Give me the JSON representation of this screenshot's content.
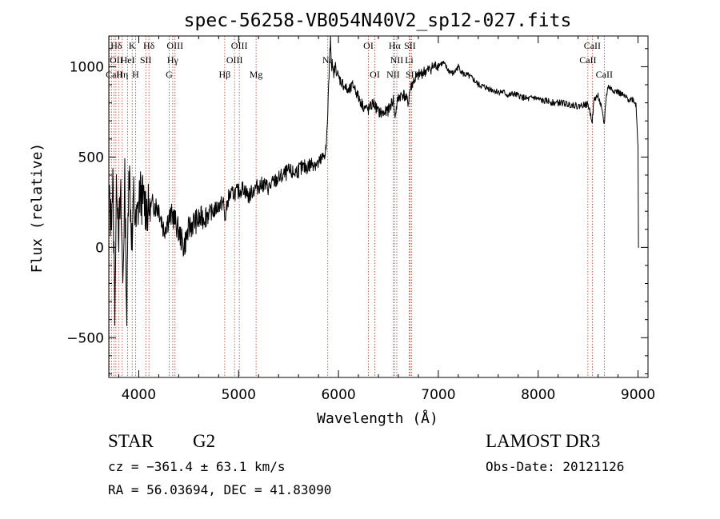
{
  "chart_data": {
    "type": "line",
    "title": "spec-56258-VB054N40V2_sp12-027.fits",
    "xlabel": "Wavelength (Å)",
    "ylabel": "Flux (relative)",
    "xlim": [
      3700,
      9100
    ],
    "ylim": [
      -720,
      1170
    ],
    "x_ticks": [
      4000,
      5000,
      6000,
      7000,
      8000,
      9000
    ],
    "x_tick_labels": [
      "4000",
      "5000",
      "6000",
      "7000",
      "8000",
      "9000"
    ],
    "y_ticks": [
      -500,
      0,
      500,
      1000
    ],
    "y_tick_labels": [
      "−500",
      "0",
      "500",
      "1000"
    ],
    "grid": false,
    "series": [
      {
        "name": "spectrum",
        "x": [
          3700,
          3720,
          3740,
          3760,
          3780,
          3800,
          3820,
          3840,
          3860,
          3880,
          3900,
          3920,
          3935,
          3950,
          3970,
          3990,
          4010,
          4050,
          4100,
          4150,
          4200,
          4250,
          4300,
          4340,
          4400,
          4450,
          4500,
          4550,
          4600,
          4650,
          4700,
          4750,
          4800,
          4850,
          4861,
          4900,
          4950,
          5000,
          5050,
          5100,
          5150,
          5200,
          5250,
          5300,
          5350,
          5400,
          5450,
          5500,
          5550,
          5600,
          5650,
          5700,
          5750,
          5800,
          5850,
          5880,
          5893,
          5910,
          5920,
          5930,
          5950,
          5970,
          6000,
          6050,
          6100,
          6150,
          6200,
          6250,
          6300,
          6350,
          6400,
          6450,
          6500,
          6550,
          6563,
          6600,
          6650,
          6700,
          6716,
          6750,
          6800,
          6850,
          6900,
          6950,
          7000,
          7050,
          7100,
          7150,
          7200,
          7250,
          7300,
          7350,
          7400,
          7450,
          7500,
          7550,
          7600,
          7650,
          7700,
          7750,
          7800,
          7850,
          7900,
          7950,
          8000,
          8050,
          8100,
          8150,
          8200,
          8250,
          8300,
          8350,
          8400,
          8450,
          8500,
          8542,
          8560,
          8600,
          8630,
          8662,
          8680,
          8700,
          8750,
          8800,
          8850,
          8900,
          8950,
          8980,
          9000,
          9005,
          9010
        ],
        "y": [
          280,
          150,
          350,
          -300,
          400,
          100,
          250,
          -200,
          350,
          -400,
          500,
          200,
          0,
          300,
          100,
          200,
          300,
          250,
          200,
          240,
          220,
          100,
          160,
          180,
          90,
          0,
          100,
          140,
          150,
          170,
          190,
          200,
          230,
          250,
          150,
          280,
          300,
          310,
          330,
          280,
          320,
          340,
          350,
          330,
          360,
          380,
          400,
          420,
          410,
          430,
          440,
          450,
          470,
          460,
          500,
          560,
          750,
          1020,
          1170,
          1020,
          960,
          1000,
          940,
          900,
          860,
          900,
          830,
          780,
          760,
          800,
          750,
          740,
          760,
          820,
          720,
          830,
          850,
          800,
          870,
          920,
          950,
          970,
          980,
          1000,
          1010,
          1020,
          980,
          960,
          1000,
          960,
          950,
          930,
          900,
          890,
          880,
          870,
          860,
          860,
          840,
          850,
          840,
          830,
          820,
          830,
          820,
          810,
          810,
          800,
          800,
          800,
          790,
          790,
          780,
          790,
          790,
          700,
          820,
          840,
          780,
          680,
          830,
          890,
          870,
          860,
          840,
          820,
          820,
          790,
          560,
          0,
          0
        ]
      }
    ],
    "spectral_lines": [
      {
        "label": "Hδ",
        "x": 3727,
        "row": 0
      },
      {
        "label": "K",
        "x": 3934,
        "row": 0
      },
      {
        "label": "Hδ",
        "x": 4102,
        "row": 0
      },
      {
        "label": "OIII",
        "x": 4363,
        "row": 0
      },
      {
        "label": "OIII",
        "x": 5007,
        "row": 0
      },
      {
        "label": "OI",
        "x": 6300,
        "row": 0
      },
      {
        "label": "Hα",
        "x": 6563,
        "row": 0
      },
      {
        "label": "SII",
        "x": 6716,
        "row": 0
      },
      {
        "label": "CaII",
        "x": 8542,
        "row": 0
      },
      {
        "label": "OII",
        "x": 3727,
        "row": 1
      },
      {
        "label": "HeI",
        "x": 3889,
        "row": 1
      },
      {
        "label": "SII",
        "x": 4070,
        "row": 1
      },
      {
        "label": "Hγ",
        "x": 4340,
        "row": 1
      },
      {
        "label": "OIII",
        "x": 4959,
        "row": 1
      },
      {
        "label": "Na",
        "x": 5893,
        "row": 1
      },
      {
        "label": "NII",
        "x": 6584,
        "row": 1
      },
      {
        "label": "Li",
        "x": 6708,
        "row": 1
      },
      {
        "label": "CaII",
        "x": 8498,
        "row": 1
      },
      {
        "label": "CaII",
        "x": 3706,
        "row": 2
      },
      {
        "label": "Hη",
        "x": 3835,
        "row": 2
      },
      {
        "label": "H",
        "x": 3968,
        "row": 2
      },
      {
        "label": "G",
        "x": 4305,
        "row": 2
      },
      {
        "label": "Hβ",
        "x": 4861,
        "row": 2
      },
      {
        "label": "Mg",
        "x": 5175,
        "row": 2
      },
      {
        "label": "OI",
        "x": 6364,
        "row": 2
      },
      {
        "label": "NII",
        "x": 6548,
        "row": 2
      },
      {
        "label": "SII",
        "x": 6731,
        "row": 2
      },
      {
        "label": "CaII",
        "x": 8662,
        "row": 2
      }
    ],
    "line_positions": [
      3706,
      3727,
      3750,
      3771,
      3798,
      3835,
      3889,
      3934,
      3968,
      4070,
      4102,
      4305,
      4340,
      4363,
      4861,
      4959,
      5007,
      5175,
      5893,
      6300,
      6364,
      6548,
      6563,
      6584,
      6708,
      6716,
      6731,
      8498,
      8542,
      8662
    ]
  },
  "footer": {
    "object_class": "STAR",
    "subclass": "G2",
    "cz": "cz = −361.4 ± 63.1 km/s",
    "coords": "RA =  56.03694, DEC =  41.83090",
    "survey": "LAMOST DR3",
    "obs_date": "Obs-Date: 20121126"
  }
}
